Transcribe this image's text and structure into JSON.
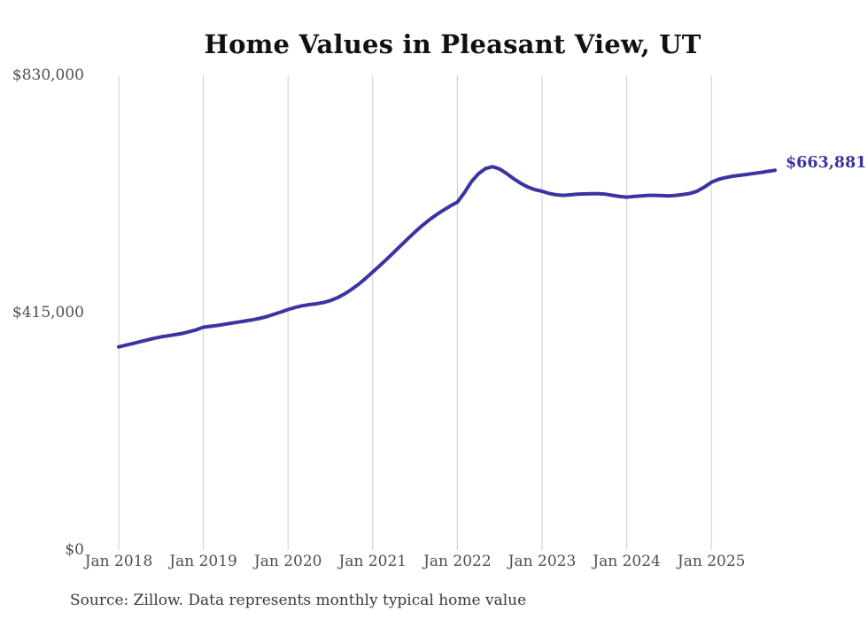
{
  "chart_data": {
    "type": "line",
    "title": "Home Values in Pleasant View, UT",
    "xlabel": "",
    "ylabel": "",
    "y_axis": {
      "min": 0,
      "max": 830000,
      "ticks": [
        {
          "label": "$830,000",
          "value": 830000
        },
        {
          "label": "$415,000",
          "value": 415000
        },
        {
          "label": "$0",
          "value": 0
        }
      ]
    },
    "x_axis": {
      "tick_labels": [
        "Jan 2018",
        "Jan 2019",
        "Jan 2020",
        "Jan 2021",
        "Jan 2022",
        "Jan 2023",
        "Jan 2024",
        "Jan 2025"
      ],
      "start": "2018-01",
      "end": "2025-10",
      "frequency": "monthly"
    },
    "grid": "vertical-only",
    "legend": "none",
    "line_color": "#3a34a1",
    "grid_color": "#cccccc",
    "end_label": "$663,881",
    "end_value": 663881,
    "series": [
      {
        "name": "Typical home value",
        "values": [
          355000,
          358000,
          361000,
          364000,
          367000,
          370000,
          372500,
          374500,
          376500,
          378500,
          381500,
          385000,
          389400,
          391000,
          392500,
          394500,
          396500,
          398500,
          400500,
          402500,
          405000,
          408000,
          412000,
          416000,
          420400,
          424000,
          427000,
          429000,
          430500,
          432500,
          436000,
          441000,
          447500,
          455500,
          464500,
          475000,
          486100,
          497000,
          508500,
          520500,
          532500,
          544500,
          556000,
          567000,
          577000,
          586000,
          594000,
          601500,
          608100,
          625000,
          644000,
          658000,
          667000,
          670200,
          666000,
          658000,
          649000,
          641000,
          634500,
          630000,
          627100,
          623500,
          621000,
          620000,
          621000,
          622000,
          622500,
          623000,
          623000,
          622000,
          620000,
          618000,
          617000,
          618000,
          619000,
          620000,
          620000,
          619500,
          619000,
          620000,
          621500,
          623500,
          627500,
          634500,
          643000,
          648000,
          651000,
          653500,
          655000,
          656500,
          658500,
          660000,
          662000,
          663881
        ]
      }
    ],
    "source_note": "Source: Zillow. Data represents monthly typical home value"
  }
}
